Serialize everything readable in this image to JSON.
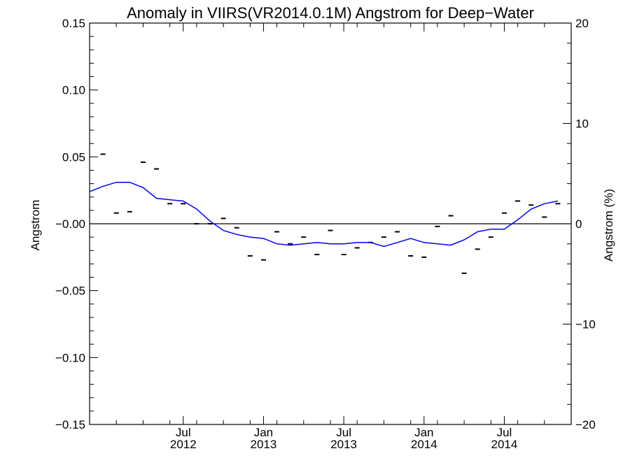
{
  "chart_data": {
    "type": "line",
    "title": "Anomaly in VIIRS(VR2014.0.1M) Angstrom for Deep−Water",
    "ylabel": "Angstrom",
    "ylabel_right": "Angstrom (%)",
    "ylim": [
      -0.15,
      0.15
    ],
    "ylim_right": [
      -20,
      20
    ],
    "x_range": [
      "2012-01",
      "2014-12"
    ],
    "yticks": [
      {
        "value": 0.15,
        "label": "0.15"
      },
      {
        "value": 0.1,
        "label": "0.10"
      },
      {
        "value": 0.05,
        "label": "0.05"
      },
      {
        "value": 0.0,
        "label": "−0.00"
      },
      {
        "value": -0.05,
        "label": "−0.05"
      },
      {
        "value": -0.1,
        "label": "−0.10"
      },
      {
        "value": -0.15,
        "label": "−0.15"
      }
    ],
    "yticks_right": [
      {
        "value": 20,
        "label": "20"
      },
      {
        "value": 10,
        "label": "10"
      },
      {
        "value": 0,
        "label": "0"
      },
      {
        "value": -10,
        "label": "−10"
      },
      {
        "value": -20,
        "label": "−20"
      }
    ],
    "xticks": [
      {
        "value": "2012-07",
        "month": "Jul",
        "year": "2012"
      },
      {
        "value": "2013-01",
        "month": "Jan",
        "year": "2013"
      },
      {
        "value": "2013-07",
        "month": "Jul",
        "year": "2013"
      },
      {
        "value": "2014-01",
        "month": "Jan",
        "year": "2014"
      },
      {
        "value": "2014-07",
        "month": "Jul",
        "year": "2014"
      }
    ],
    "series": [
      {
        "kind": "monthly-anomaly-markers",
        "color": "#000000",
        "points": [
          [
            "2012-01",
            0.052
          ],
          [
            "2012-02",
            0.008
          ],
          [
            "2012-03",
            0.009
          ],
          [
            "2012-04",
            0.046
          ],
          [
            "2012-05",
            0.041
          ],
          [
            "2012-06",
            0.015
          ],
          [
            "2012-07",
            0.015
          ],
          [
            "2012-08",
            0.0
          ],
          [
            "2012-09",
            0.0
          ],
          [
            "2012-10",
            0.004
          ],
          [
            "2012-11",
            -0.003
          ],
          [
            "2012-12",
            -0.024
          ],
          [
            "2013-01",
            -0.027
          ],
          [
            "2013-02",
            -0.006
          ],
          [
            "2013-03",
            -0.015
          ],
          [
            "2013-04",
            -0.01
          ],
          [
            "2013-05",
            -0.023
          ],
          [
            "2013-06",
            -0.005
          ],
          [
            "2013-07",
            -0.023
          ],
          [
            "2013-08",
            -0.018
          ],
          [
            "2013-09",
            -0.014
          ],
          [
            "2013-10",
            -0.01
          ],
          [
            "2013-11",
            -0.006
          ],
          [
            "2013-12",
            -0.024
          ],
          [
            "2014-01",
            -0.025
          ],
          [
            "2014-02",
            -0.002
          ],
          [
            "2014-03",
            0.006
          ],
          [
            "2014-04",
            -0.037
          ],
          [
            "2014-05",
            -0.019
          ],
          [
            "2014-06",
            -0.01
          ],
          [
            "2014-07",
            0.008
          ],
          [
            "2014-08",
            0.017
          ],
          [
            "2014-09",
            0.014
          ],
          [
            "2014-10",
            0.005
          ],
          [
            "2014-11",
            0.015
          ]
        ]
      },
      {
        "kind": "running-mean",
        "color": "#0000ff",
        "points": [
          [
            "2011-12",
            0.024
          ],
          [
            "2012-01",
            0.028
          ],
          [
            "2012-02",
            0.031
          ],
          [
            "2012-03",
            0.031
          ],
          [
            "2012-04",
            0.027
          ],
          [
            "2012-05",
            0.019
          ],
          [
            "2012-06",
            0.018
          ],
          [
            "2012-07",
            0.017
          ],
          [
            "2012-08",
            0.011
          ],
          [
            "2012-09",
            0.002
          ],
          [
            "2012-10",
            -0.005
          ],
          [
            "2012-11",
            -0.008
          ],
          [
            "2012-12",
            -0.01
          ],
          [
            "2013-01",
            -0.011
          ],
          [
            "2013-02",
            -0.015
          ],
          [
            "2013-03",
            -0.016
          ],
          [
            "2013-04",
            -0.015
          ],
          [
            "2013-05",
            -0.014
          ],
          [
            "2013-06",
            -0.015
          ],
          [
            "2013-07",
            -0.015
          ],
          [
            "2013-08",
            -0.014
          ],
          [
            "2013-09",
            -0.014
          ],
          [
            "2013-10",
            -0.017
          ],
          [
            "2013-11",
            -0.014
          ],
          [
            "2013-12",
            -0.011
          ],
          [
            "2014-01",
            -0.014
          ],
          [
            "2014-02",
            -0.015
          ],
          [
            "2014-03",
            -0.016
          ],
          [
            "2014-04",
            -0.012
          ],
          [
            "2014-05",
            -0.006
          ],
          [
            "2014-06",
            -0.004
          ],
          [
            "2014-07",
            -0.004
          ],
          [
            "2014-08",
            0.003
          ],
          [
            "2014-09",
            0.011
          ],
          [
            "2014-10",
            0.015
          ],
          [
            "2014-11",
            0.017
          ]
        ]
      }
    ],
    "zero_line": true,
    "grid": false,
    "legend": "none"
  }
}
